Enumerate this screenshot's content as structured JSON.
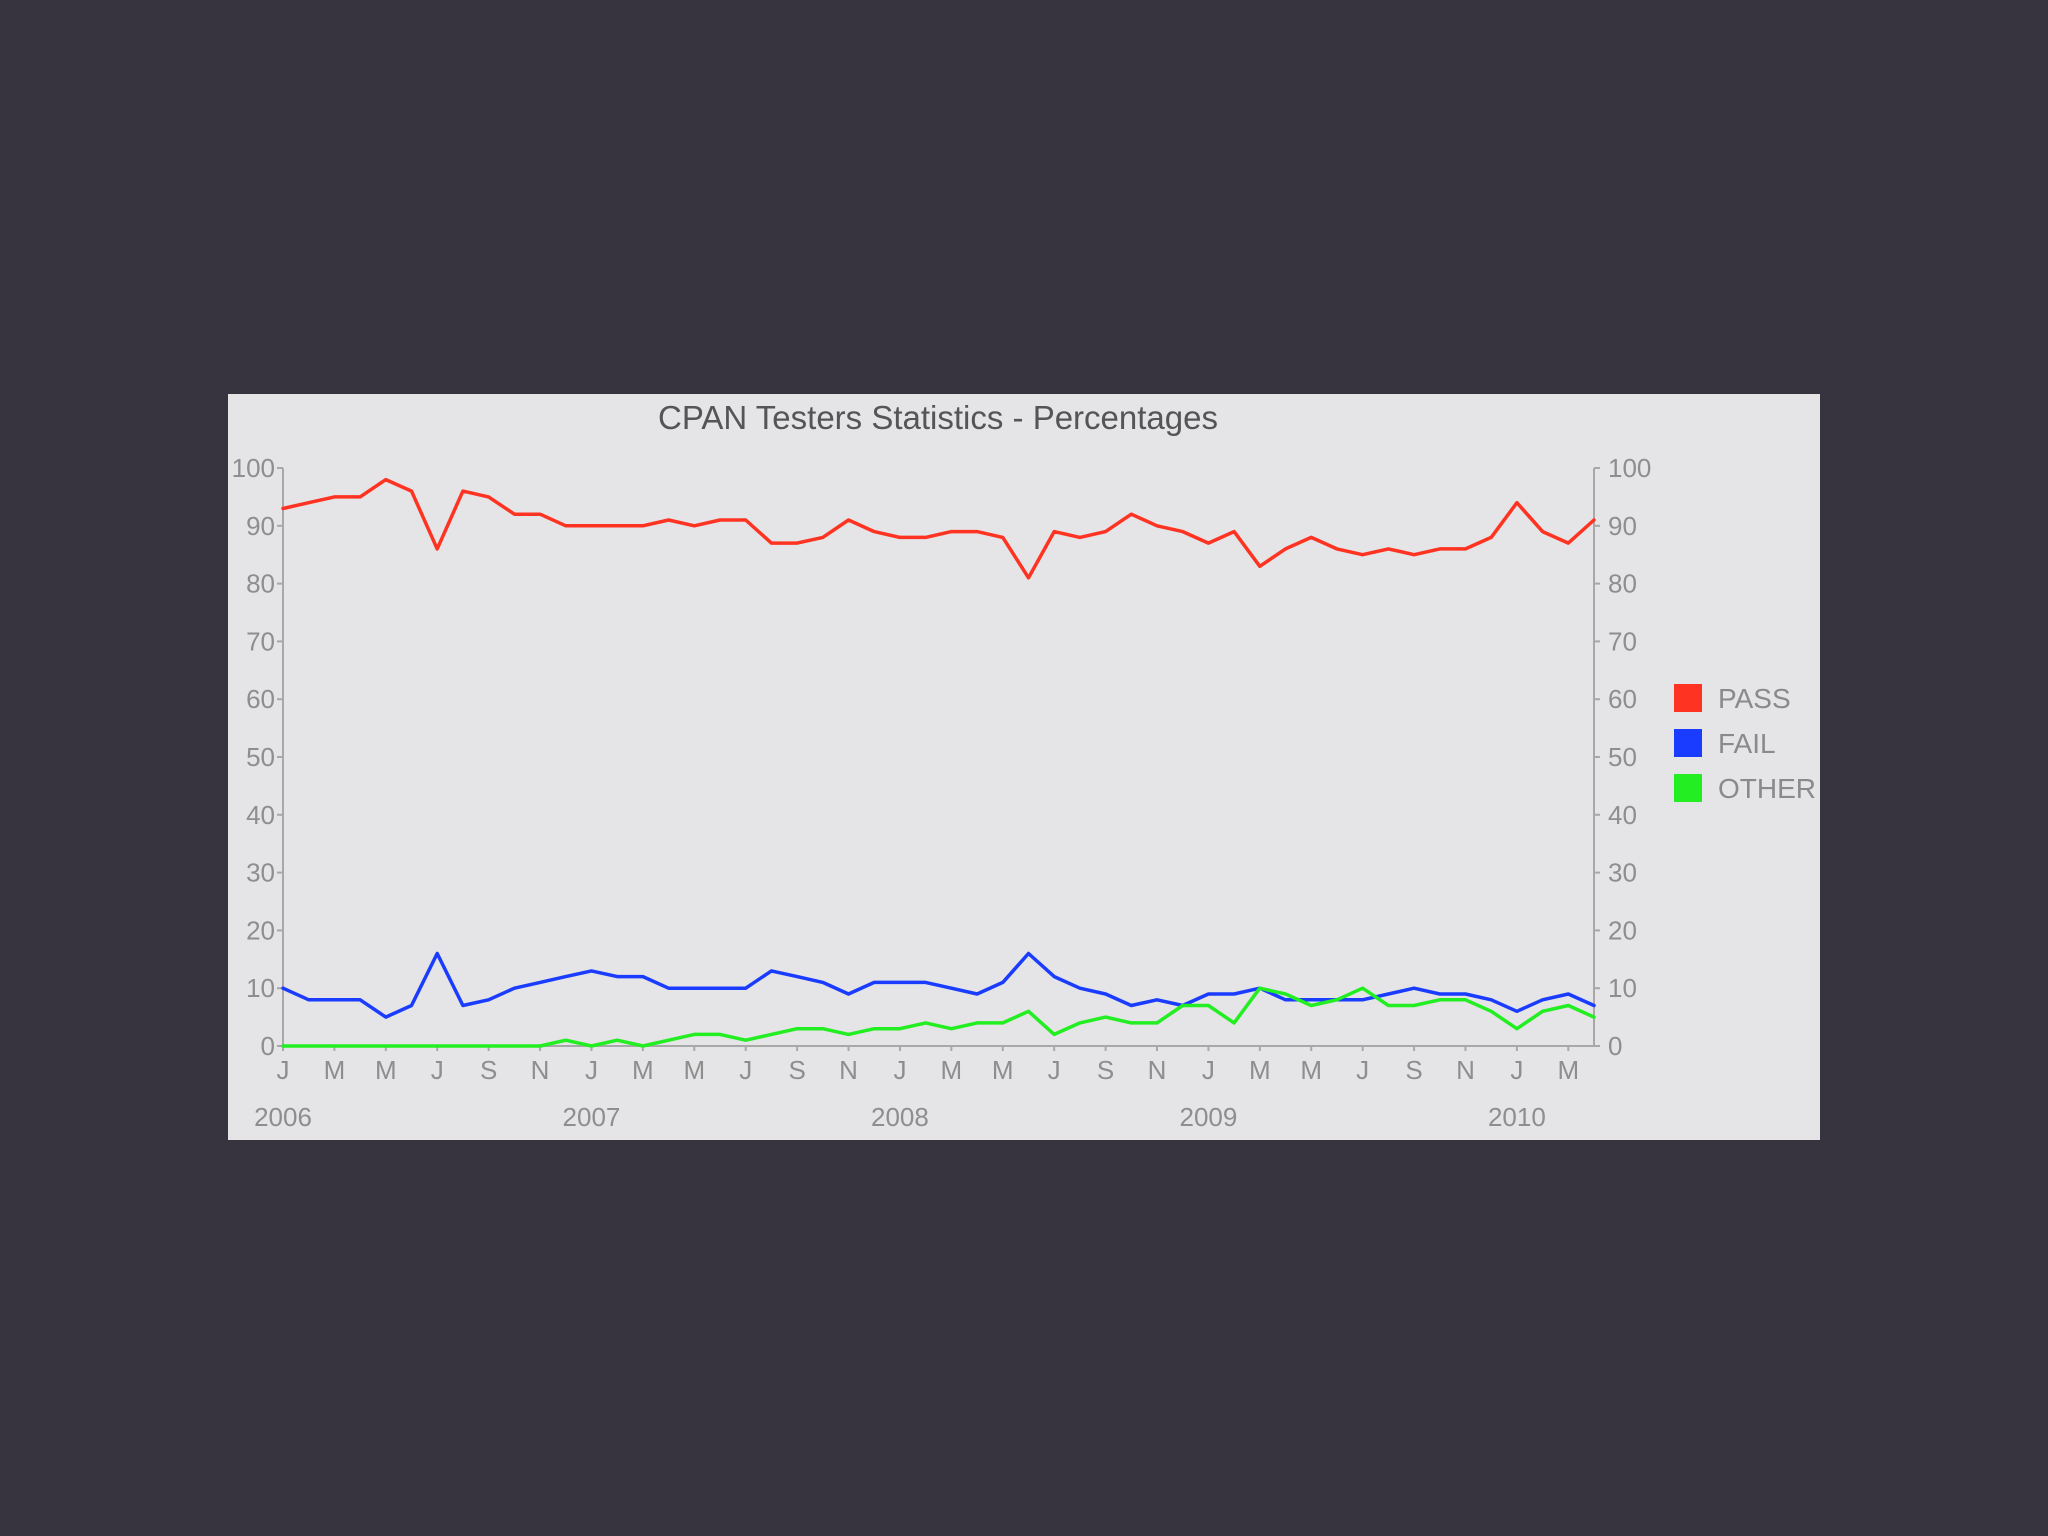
{
  "chart_data": {
    "type": "line",
    "title": "CPAN Testers Statistics - Percentages",
    "xlabel": "",
    "ylabel": "",
    "ylim": [
      0,
      100
    ],
    "y_ticks": [
      "0",
      "10",
      "20",
      "30",
      "40",
      "50",
      "60",
      "70",
      "80",
      "90",
      "100"
    ],
    "month_labels": [
      "J",
      "M",
      "M",
      "J",
      "S",
      "N",
      "J",
      "M",
      "M",
      "J",
      "S",
      "N",
      "J",
      "M",
      "M",
      "J",
      "S",
      "N",
      "J",
      "M",
      "M",
      "J",
      "S",
      "N",
      "J",
      "M"
    ],
    "year_labels": [
      "2006",
      "2007",
      "2008",
      "2009",
      "2010"
    ],
    "series": [
      {
        "name": "PASS",
        "color": "#ff3322",
        "values": [
          93,
          94,
          95,
          95,
          98,
          96,
          86,
          96,
          95,
          92,
          92,
          90,
          90,
          90,
          90,
          91,
          90,
          91,
          91,
          87,
          87,
          88,
          91,
          89,
          88,
          88,
          89,
          89,
          88,
          81,
          89,
          88,
          89,
          92,
          90,
          89,
          87,
          89,
          83,
          86,
          88,
          86,
          85,
          86,
          85,
          86,
          86,
          88,
          94,
          89,
          87,
          91
        ]
      },
      {
        "name": "FAIL",
        "color": "#1a3cff",
        "values": [
          10,
          8,
          8,
          8,
          5,
          7,
          16,
          7,
          8,
          10,
          11,
          12,
          13,
          12,
          12,
          10,
          10,
          10,
          10,
          13,
          12,
          11,
          9,
          11,
          11,
          11,
          10,
          9,
          11,
          16,
          12,
          10,
          9,
          7,
          8,
          7,
          9,
          9,
          10,
          8,
          8,
          8,
          8,
          9,
          10,
          9,
          9,
          8,
          6,
          8,
          9,
          7
        ]
      },
      {
        "name": "OTHER",
        "color": "#22ee22",
        "values": [
          0,
          0,
          0,
          0,
          0,
          0,
          0,
          0,
          0,
          0,
          0,
          1,
          0,
          1,
          0,
          1,
          2,
          2,
          1,
          2,
          3,
          3,
          2,
          3,
          3,
          4,
          3,
          4,
          4,
          6,
          2,
          4,
          5,
          4,
          4,
          7,
          7,
          4,
          10,
          9,
          7,
          8,
          10,
          7,
          7,
          8,
          8,
          6,
          3,
          6,
          7,
          5
        ]
      }
    ],
    "legend_position": "right"
  }
}
